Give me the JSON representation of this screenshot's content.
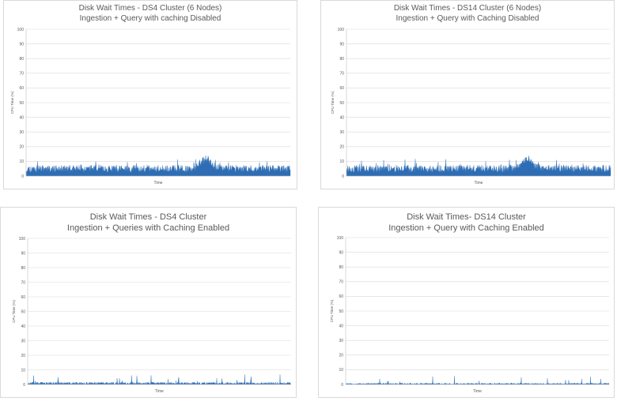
{
  "chart_data": [
    {
      "type": "area",
      "title": "Disk Wait Times - DS4 Cluster (6 Nodes)",
      "subtitle": "Ingestion + Query with caching Disabled",
      "xlabel": "Time",
      "ylabel": "CPU Time (%)",
      "ylim": [
        0,
        100
      ],
      "yticks": [
        0,
        10,
        20,
        30,
        40,
        50,
        60,
        70,
        80,
        90,
        100
      ],
      "grid": true,
      "color": "#2e6db4",
      "profile": {
        "baseline": 5,
        "noise": 2.5,
        "spike_chance": 0.06,
        "spike_height": 5,
        "bump_at": 0.68,
        "bump_height": 8,
        "bump_width": 0.03,
        "seed": 11
      }
    },
    {
      "type": "area",
      "title": "Disk Wait Times - DS14 Cluster (6 Nodes)",
      "subtitle": "Ingestion + Query with Caching Disabled",
      "xlabel": "Time",
      "ylabel": "CPU Time (%)",
      "ylim": [
        0,
        100
      ],
      "yticks": [
        0,
        10,
        20,
        30,
        40,
        50,
        60,
        70,
        80,
        90,
        100
      ],
      "grid": true,
      "color": "#2e6db4",
      "profile": {
        "baseline": 5,
        "noise": 2.5,
        "spike_chance": 0.06,
        "spike_height": 5,
        "bump_at": 0.68,
        "bump_height": 8,
        "bump_width": 0.03,
        "seed": 23
      }
    },
    {
      "type": "area",
      "title": "Disk Wait Times - DS4 Cluster",
      "subtitle": "Ingestion + Queries with Caching Enabled",
      "xlabel": "Time",
      "ylabel": "CPU Time (%)",
      "ylim": [
        0,
        100
      ],
      "yticks": [
        0,
        10,
        20,
        30,
        40,
        50,
        60,
        70,
        80,
        90,
        100
      ],
      "grid": true,
      "color": "#2e6db4",
      "profile": {
        "baseline": 0.8,
        "noise": 0.8,
        "spike_chance": 0.05,
        "spike_height": 6,
        "bump_at": 0,
        "bump_height": 0,
        "bump_width": 0.01,
        "seed": 37
      }
    },
    {
      "type": "area",
      "title": "Disk Wait Times- DS14 Cluster",
      "subtitle": "Ingestion + Query with Caching Enabled",
      "xlabel": "Time",
      "ylabel": "CPU Time (%)",
      "ylim": [
        0,
        100
      ],
      "yticks": [
        0,
        10,
        20,
        30,
        40,
        50,
        60,
        70,
        80,
        90,
        100
      ],
      "grid": true,
      "color": "#2e6db4",
      "profile": {
        "baseline": 0.5,
        "noise": 0.5,
        "spike_chance": 0.03,
        "spike_height": 5,
        "bump_at": 0,
        "bump_height": 0,
        "bump_width": 0.01,
        "seed": 53
      }
    }
  ]
}
